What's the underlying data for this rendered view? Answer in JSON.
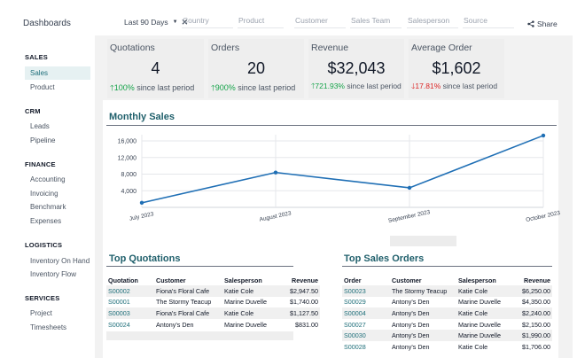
{
  "app": {
    "title": "Dashboards"
  },
  "search": {
    "period": "Last 90 Days",
    "facets": [
      "Country",
      "Product",
      "Customer",
      "Sales Team",
      "Salesperson",
      "Source"
    ]
  },
  "share_label": "Share",
  "sidebar": {
    "sections": [
      {
        "title": "SALES",
        "items": [
          {
            "label": "Sales",
            "active": true
          },
          {
            "label": "Product"
          }
        ]
      },
      {
        "title": "CRM",
        "items": [
          {
            "label": "Leads"
          },
          {
            "label": "Pipeline"
          }
        ]
      },
      {
        "title": "FINANCE",
        "items": [
          {
            "label": "Accounting"
          },
          {
            "label": "Invoicing"
          },
          {
            "label": "Benchmark"
          },
          {
            "label": "Expenses"
          }
        ]
      },
      {
        "title": "LOGISTICS",
        "items": [
          {
            "label": "Inventory On Hand"
          },
          {
            "label": "Inventory Flow"
          }
        ]
      },
      {
        "title": "SERVICES",
        "items": [
          {
            "label": "Project"
          },
          {
            "label": "Timesheets"
          }
        ]
      }
    ]
  },
  "kpis": [
    {
      "label": "Quotations",
      "value": "4",
      "change": "100%",
      "direction": "up",
      "since": "since last period"
    },
    {
      "label": "Orders",
      "value": "20",
      "change": "900%",
      "direction": "up",
      "since": "since last period"
    },
    {
      "label": "Revenue",
      "value": "$32,043",
      "change": "721.93%",
      "direction": "up",
      "since": "since last period"
    },
    {
      "label": "Average Order",
      "value": "$1,602",
      "change": "17.81%",
      "direction": "down",
      "since": "since last period"
    }
  ],
  "monthly_sales": {
    "title": "Monthly Sales"
  },
  "chart_data": {
    "type": "line",
    "title": "Monthly Sales",
    "categories": [
      "July 2023",
      "August 2023",
      "September 2023",
      "October 2023"
    ],
    "series": [
      {
        "values": [
          1100,
          8400,
          4700,
          17300
        ],
        "color": "#1f6fb5"
      }
    ],
    "yticks": [
      4000,
      8000,
      12000,
      16000
    ],
    "ytick_labels": [
      "4,000",
      "8,000",
      "12,000",
      "16,000"
    ],
    "ylim": [
      0,
      17500
    ],
    "grid": true
  },
  "top_quotations": {
    "title": "Top Quotations",
    "headers": [
      "Quotation",
      "Customer",
      "Salesperson",
      "Revenue"
    ],
    "rows": [
      [
        "S00002",
        "Fiona's Floral Cafe",
        "Katie Cole",
        "$2,947.50"
      ],
      [
        "S00001",
        "The Stormy Teacup",
        "Marine Duvelle",
        "$1,740.00"
      ],
      [
        "S00003",
        "Fiona's Floral Cafe",
        "Katie Cole",
        "$1,127.50"
      ],
      [
        "S00024",
        "Antony's Den",
        "Marine Duvelle",
        "$831.00"
      ]
    ]
  },
  "top_orders": {
    "title": "Top Sales Orders",
    "headers": [
      "Order",
      "Customer",
      "Salesperson",
      "Revenue"
    ],
    "rows": [
      [
        "S00023",
        "The Stormy Teacup",
        "Katie Cole",
        "$6,250.00"
      ],
      [
        "S00029",
        "Antony's Den",
        "Marine Duvelle",
        "$4,350.00"
      ],
      [
        "S00004",
        "Antony's Den",
        "Katie Cole",
        "$2,240.00"
      ],
      [
        "S00027",
        "Antony's Den",
        "Marine Duvelle",
        "$2,150.00"
      ],
      [
        "S00030",
        "Antony's Den",
        "Marine Duvelle",
        "$1,990.00"
      ],
      [
        "S00028",
        "Antony's Den",
        "Katie Cole",
        "$1,706.00"
      ]
    ]
  },
  "colors": {
    "accent": "#1f5f6b",
    "line": "#1f6fb5",
    "up": "#16a34a",
    "down": "#dc2626"
  }
}
